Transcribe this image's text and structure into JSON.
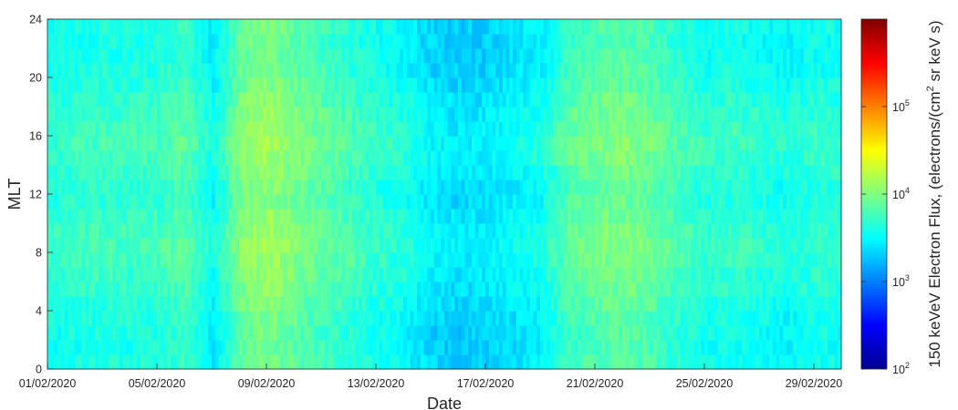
{
  "chart_data": {
    "type": "heatmap",
    "title": "",
    "xlabel": "Date",
    "ylabel": "MLT",
    "x_ticks": [
      "01/02/2020",
      "05/02/2020",
      "09/02/2020",
      "13/02/2020",
      "17/02/2020",
      "21/02/2020",
      "25/02/2020",
      "29/02/2020"
    ],
    "x_range": [
      "01/02/2020",
      "01/03/2020"
    ],
    "y_ticks": [
      "0",
      "4",
      "8",
      "12",
      "16",
      "20",
      "24"
    ],
    "ylim": [
      0,
      24
    ],
    "colorbar": {
      "label": "150 keVeV Electron Flux, (electrons/(cm² sr keV s)",
      "label_parts": [
        "150 keVeV Electron Flux, (electrons/(cm",
        "2",
        " sr keV s)"
      ],
      "scale": "log",
      "range": [
        100,
        1000000
      ],
      "ticks": [
        {
          "base": "10",
          "exp": "2"
        },
        {
          "base": "10",
          "exp": "3"
        },
        {
          "base": "10",
          "exp": "4"
        },
        {
          "base": "10",
          "exp": "5"
        }
      ],
      "colormap": "jet"
    },
    "daily_log10_flux_noon": [
      3.62,
      3.65,
      3.68,
      3.66,
      3.7,
      3.78,
      3.5,
      3.95,
      4.05,
      3.92,
      3.82,
      3.72,
      3.62,
      3.55,
      3.4,
      3.35,
      3.38,
      3.45,
      3.52,
      3.8,
      3.88,
      3.92,
      3.85,
      3.72,
      3.62,
      3.65,
      3.6,
      3.55,
      3.62
    ],
    "mlt_profile_offset": [
      0.0,
      0.04,
      0.08,
      0.1,
      0.08,
      0.05,
      0.02,
      -0.02,
      -0.05,
      -0.07,
      -0.08,
      -0.06,
      -0.02
    ],
    "grid": false
  }
}
